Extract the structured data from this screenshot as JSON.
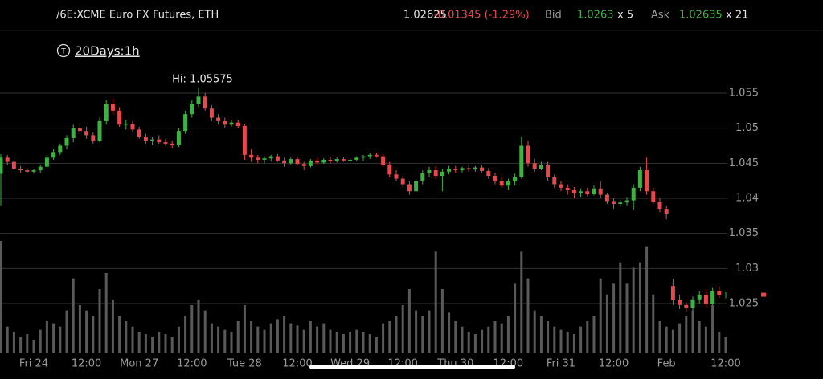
{
  "header": {
    "symbol": "/6E:XCME Euro FX Futures, ETH",
    "last": "1.02625",
    "change": "-0.01345 (-1.29%)",
    "bid_label": "Bid",
    "bid": "1.0263",
    "bid_size": "x 5",
    "ask_label": "Ask",
    "ask": "1.02635",
    "ask_size": "x 21"
  },
  "toolbar": {
    "icon": "T",
    "period": "20Days:1h"
  },
  "chart_data": {
    "type": "candlestick",
    "annotation": "Hi: 1.05575",
    "up_color": "#3fb144",
    "down_color": "#e5484d",
    "volume_color": "#5a5a5a",
    "grid": true,
    "ylim": [
      1.0179,
      1.0637
    ],
    "yticks": [
      1.055,
      1.05,
      1.045,
      1.04,
      1.035,
      1.03,
      1.025
    ],
    "volume_lim": [
      0,
      300
    ],
    "categories": [
      null,
      null,
      null,
      null,
      null,
      "Fri 24",
      null,
      null,
      null,
      null,
      null,
      null,
      null,
      "12:00",
      null,
      null,
      null,
      null,
      null,
      null,
      null,
      "Mon 27",
      null,
      null,
      null,
      null,
      null,
      null,
      null,
      "12:00",
      null,
      null,
      null,
      null,
      null,
      null,
      null,
      "Tue 28",
      null,
      null,
      null,
      null,
      null,
      null,
      null,
      "12:00",
      null,
      null,
      null,
      null,
      null,
      null,
      null,
      "Wed 29",
      null,
      null,
      null,
      null,
      null,
      null,
      null,
      "12:00",
      null,
      null,
      null,
      null,
      null,
      null,
      null,
      "Thu 30",
      null,
      null,
      null,
      null,
      null,
      null,
      null,
      "12:00",
      null,
      null,
      null,
      null,
      null,
      null,
      null,
      "Fri 31",
      null,
      null,
      null,
      null,
      null,
      null,
      null,
      "12:00",
      null,
      null,
      null,
      null,
      null,
      null,
      null,
      "Feb",
      null,
      null,
      null,
      null,
      null,
      null,
      null,
      null,
      "12:00"
    ],
    "open": [
      1.0435,
      1.0458,
      1.0452,
      1.0442,
      1.044,
      1.0438,
      1.044,
      1.0445,
      1.0458,
      1.0466,
      1.0475,
      1.0486,
      1.05,
      1.0496,
      1.049,
      1.0482,
      1.051,
      1.0535,
      1.0525,
      1.0505,
      1.0506,
      1.0498,
      1.0488,
      1.0482,
      1.0484,
      1.048,
      1.0478,
      1.0476,
      1.0496,
      1.052,
      1.0535,
      1.0545,
      1.0528,
      1.0515,
      1.051,
      1.0505,
      1.0508,
      1.0503,
      1.0462,
      1.0458,
      1.0455,
      1.0457,
      1.046,
      1.0454,
      1.045,
      1.0456,
      1.0449,
      1.0446,
      1.0454,
      1.0451,
      1.0455,
      1.0453,
      1.0456,
      1.0454,
      1.0455,
      1.0458,
      1.046,
      1.0462,
      1.046,
      1.0448,
      1.0434,
      1.0428,
      1.042,
      1.041,
      1.0425,
      1.0436,
      1.044,
      1.0432,
      1.0438,
      1.0442,
      1.044,
      1.0443,
      1.0441,
      1.0444,
      1.0439,
      1.0432,
      1.0425,
      1.0418,
      1.0424,
      1.043,
      1.0475,
      1.045,
      1.0442,
      1.0448,
      1.043,
      1.042,
      1.0415,
      1.0412,
      1.0408,
      1.041,
      1.0406,
      1.0414,
      1.0405,
      1.0396,
      1.0392,
      1.0394,
      1.0397,
      1.0415,
      1.044,
      1.041,
      1.0395,
      1.0385,
      1.0275,
      1.0255,
      1.0248,
      1.0244,
      1.0256,
      1.0262,
      1.025,
      1.0268,
      1.0262
    ],
    "high": [
      1.0463,
      1.0462,
      1.0455,
      1.0446,
      1.0443,
      1.0442,
      1.0447,
      1.0462,
      1.047,
      1.0478,
      1.049,
      1.0505,
      1.0508,
      1.0502,
      1.0494,
      1.0515,
      1.054,
      1.0542,
      1.053,
      1.0512,
      1.051,
      1.0502,
      1.0492,
      1.0488,
      1.049,
      1.0485,
      1.0482,
      1.05,
      1.0525,
      1.054,
      1.05575,
      1.055,
      1.0533,
      1.052,
      1.0515,
      1.0512,
      1.0512,
      1.0506,
      1.047,
      1.0462,
      1.046,
      1.0462,
      1.0463,
      1.0458,
      1.0458,
      1.0459,
      1.0452,
      1.0456,
      1.0458,
      1.0457,
      1.0459,
      1.0458,
      1.0459,
      1.0457,
      1.046,
      1.0462,
      1.0464,
      1.0465,
      1.0463,
      1.0452,
      1.044,
      1.0432,
      1.0424,
      1.0428,
      1.044,
      1.0445,
      1.0446,
      1.0442,
      1.0446,
      1.0446,
      1.0445,
      1.0447,
      1.0446,
      1.0447,
      1.0443,
      1.0436,
      1.043,
      1.0428,
      1.0435,
      1.0488,
      1.0482,
      1.0456,
      1.0452,
      1.0452,
      1.0434,
      1.0425,
      1.042,
      1.0416,
      1.0414,
      1.0415,
      1.0418,
      1.0424,
      1.0408,
      1.04,
      1.0398,
      1.0402,
      1.042,
      1.0445,
      1.0458,
      1.0415,
      1.04,
      1.039,
      1.0285,
      1.0262,
      1.0252,
      1.026,
      1.0268,
      1.027,
      1.0272,
      1.0275,
      1.0266
    ],
    "low": [
      1.039,
      1.0448,
      1.044,
      1.0437,
      1.0436,
      1.0435,
      1.0436,
      1.0443,
      1.0455,
      1.0462,
      1.047,
      1.048,
      1.0492,
      1.0485,
      1.0478,
      1.048,
      1.0505,
      1.052,
      1.0502,
      1.0498,
      1.0495,
      1.0485,
      1.0478,
      1.0476,
      1.0478,
      1.0475,
      1.0472,
      1.0473,
      1.0492,
      1.0515,
      1.053,
      1.0525,
      1.051,
      1.0505,
      1.05,
      1.0502,
      1.05,
      1.0455,
      1.0452,
      1.045,
      1.045,
      1.0453,
      1.0452,
      1.0445,
      1.0448,
      1.0447,
      1.044,
      1.0444,
      1.0448,
      1.0449,
      1.045,
      1.0451,
      1.0452,
      1.0451,
      1.0453,
      1.0454,
      1.0456,
      1.0458,
      1.0445,
      1.043,
      1.0425,
      1.0415,
      1.0405,
      1.0408,
      1.042,
      1.043,
      1.0428,
      1.041,
      1.0434,
      1.0436,
      1.0437,
      1.0438,
      1.0438,
      1.0437,
      1.0428,
      1.042,
      1.0415,
      1.0412,
      1.0418,
      1.0428,
      1.0445,
      1.0438,
      1.044,
      1.0425,
      1.0415,
      1.041,
      1.0405,
      1.04,
      1.0402,
      1.0403,
      1.0404,
      1.04,
      1.0392,
      1.0385,
      1.0388,
      1.039,
      1.0384,
      1.041,
      1.0405,
      1.0392,
      1.038,
      1.037,
      1.0248,
      1.0242,
      1.0238,
      1.024,
      1.025,
      1.0245,
      1.0248,
      1.0258,
      1.02575
    ],
    "close": [
      1.0458,
      1.0452,
      1.0442,
      1.044,
      1.0438,
      1.044,
      1.0445,
      1.0458,
      1.0466,
      1.0475,
      1.0486,
      1.05,
      1.0496,
      1.049,
      1.0482,
      1.051,
      1.0535,
      1.0525,
      1.0505,
      1.0506,
      1.0498,
      1.0488,
      1.0482,
      1.0484,
      1.048,
      1.0478,
      1.0476,
      1.0496,
      1.052,
      1.0535,
      1.0545,
      1.0528,
      1.0515,
      1.051,
      1.0505,
      1.0508,
      1.0503,
      1.0462,
      1.0458,
      1.0455,
      1.0457,
      1.046,
      1.0454,
      1.045,
      1.0456,
      1.0449,
      1.0446,
      1.0454,
      1.0451,
      1.0455,
      1.0453,
      1.0456,
      1.0454,
      1.0455,
      1.0458,
      1.046,
      1.0462,
      1.046,
      1.0448,
      1.0434,
      1.0428,
      1.042,
      1.041,
      1.0425,
      1.0436,
      1.044,
      1.0432,
      1.0438,
      1.0442,
      1.044,
      1.0443,
      1.0441,
      1.0444,
      1.0439,
      1.0432,
      1.0425,
      1.0418,
      1.0424,
      1.043,
      1.0475,
      1.045,
      1.0442,
      1.0448,
      1.043,
      1.042,
      1.0415,
      1.0412,
      1.0408,
      1.041,
      1.0406,
      1.0414,
      1.0405,
      1.0396,
      1.0392,
      1.0394,
      1.0397,
      1.0415,
      1.044,
      1.041,
      1.0395,
      1.0385,
      1.0378,
      1.0255,
      1.0248,
      1.0244,
      1.0256,
      1.0262,
      1.025,
      1.0268,
      1.0262,
      1.02625
    ],
    "volume": [
      105,
      25,
      20,
      15,
      18,
      12,
      22,
      30,
      28,
      25,
      40,
      70,
      45,
      40,
      35,
      60,
      75,
      50,
      35,
      30,
      25,
      20,
      18,
      15,
      20,
      18,
      15,
      25,
      35,
      45,
      50,
      40,
      28,
      25,
      22,
      20,
      30,
      45,
      30,
      25,
      22,
      28,
      32,
      35,
      28,
      26,
      22,
      30,
      25,
      28,
      22,
      20,
      18,
      20,
      22,
      20,
      18,
      15,
      28,
      30,
      35,
      45,
      60,
      40,
      35,
      40,
      95,
      60,
      38,
      30,
      25,
      20,
      18,
      22,
      25,
      30,
      28,
      35,
      65,
      95,
      70,
      40,
      35,
      30,
      25,
      22,
      20,
      18,
      25,
      30,
      35,
      70,
      55,
      65,
      85,
      65,
      80,
      85,
      100,
      55,
      30,
      25,
      22,
      28,
      35,
      40,
      30,
      25,
      45,
      20,
      15
    ]
  }
}
